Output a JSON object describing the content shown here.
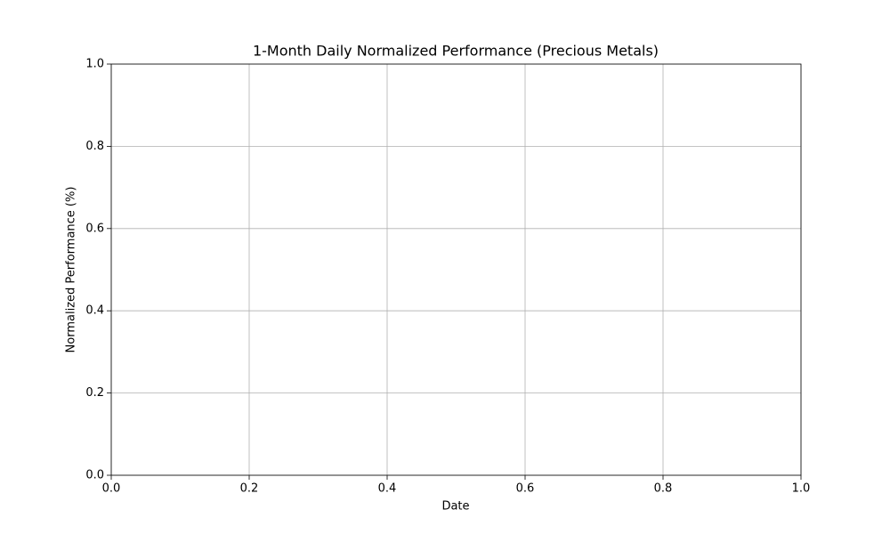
{
  "chart_data": {
    "type": "line",
    "title": "1-Month Daily Normalized Performance (Precious Metals)",
    "xlabel": "Date",
    "ylabel": "Normalized Performance (%)",
    "xlim": [
      0,
      1
    ],
    "ylim": [
      0,
      1
    ],
    "xticks": [
      {
        "value": 0,
        "label": "0.0"
      },
      0.2,
      0.4,
      0.6,
      0.8,
      {
        "value": 1,
        "label": "1.0"
      }
    ],
    "yticks": [
      {
        "value": 0,
        "label": "0.0"
      },
      0.2,
      0.4,
      0.6,
      0.8,
      {
        "value": 1,
        "label": "1.0"
      }
    ],
    "grid": true
  }
}
